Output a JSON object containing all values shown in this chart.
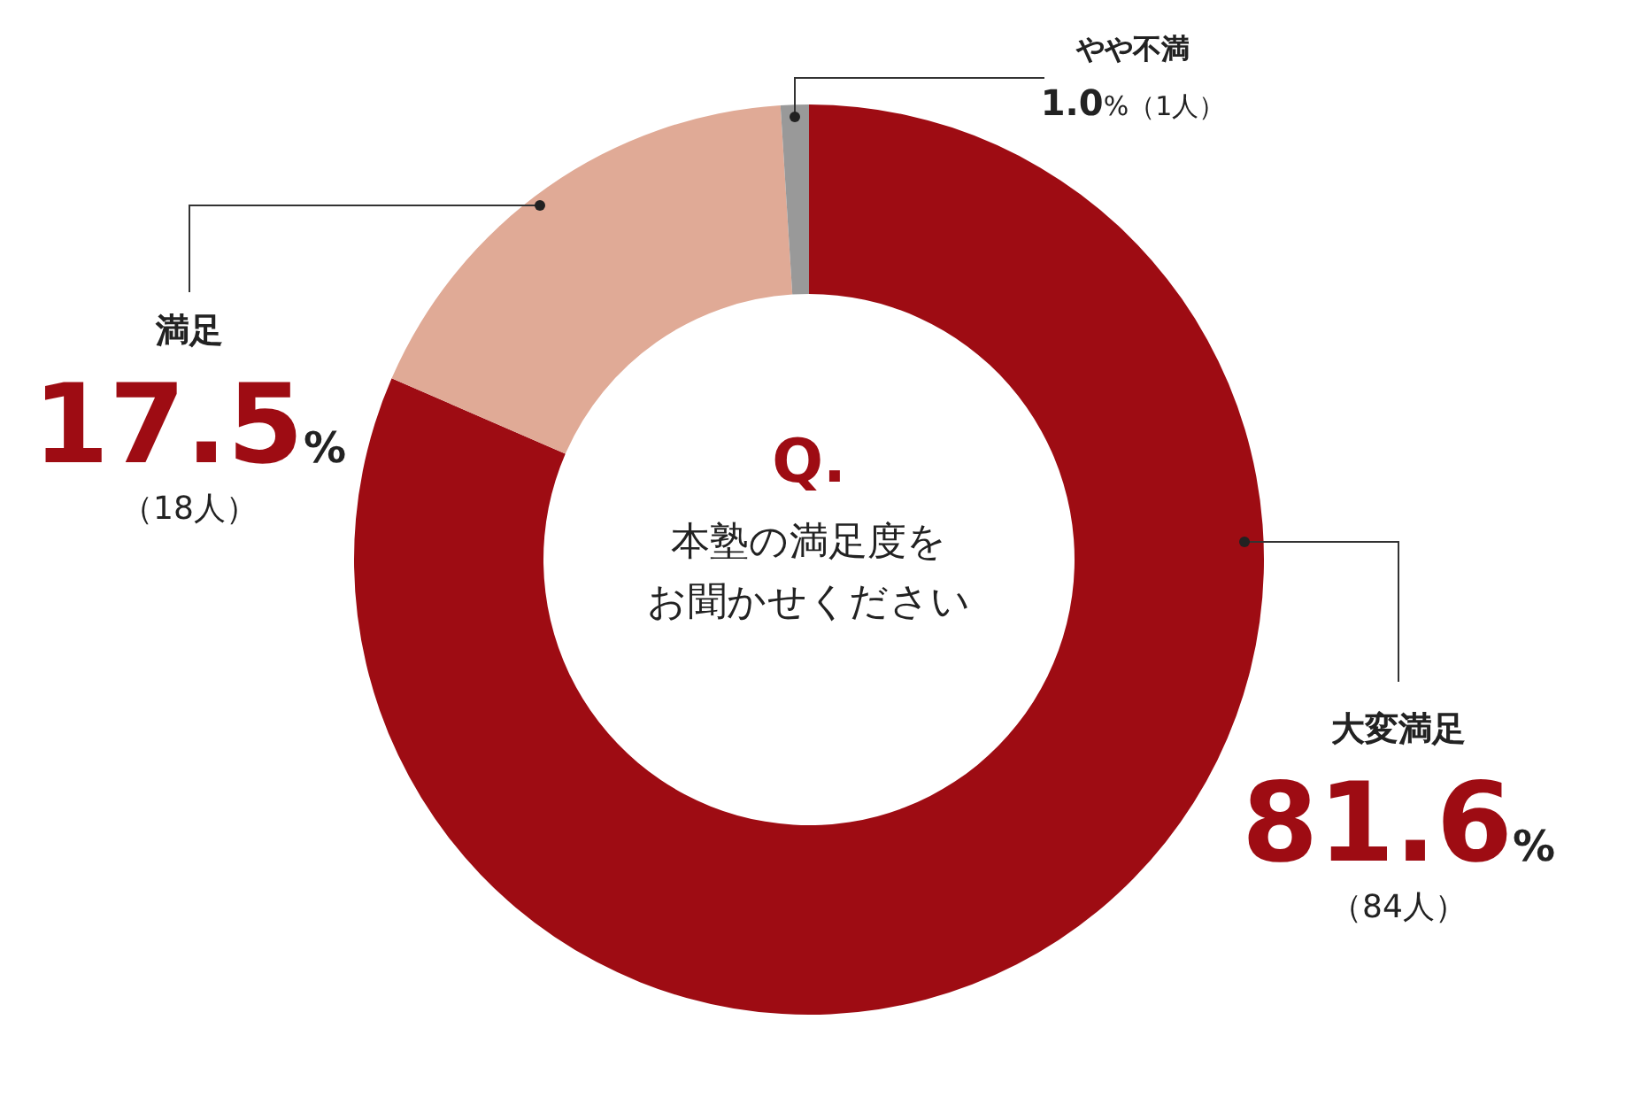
{
  "chart_data": {
    "type": "donut",
    "title": "Q.",
    "subtitle": "本塾の満足度をお聞かせください",
    "categories": [
      "大変満足",
      "満足",
      "やや不満"
    ],
    "values": [
      81.6,
      17.5,
      1.0
    ],
    "colors": [
      "#9e0c13",
      "#e0aa96",
      "#999999"
    ],
    "value_labels": [
      "81.6%",
      "17.5%",
      "1.0%"
    ],
    "annotations": [
      "（84人）",
      "（18人）",
      "（1人）"
    ]
  }
}
